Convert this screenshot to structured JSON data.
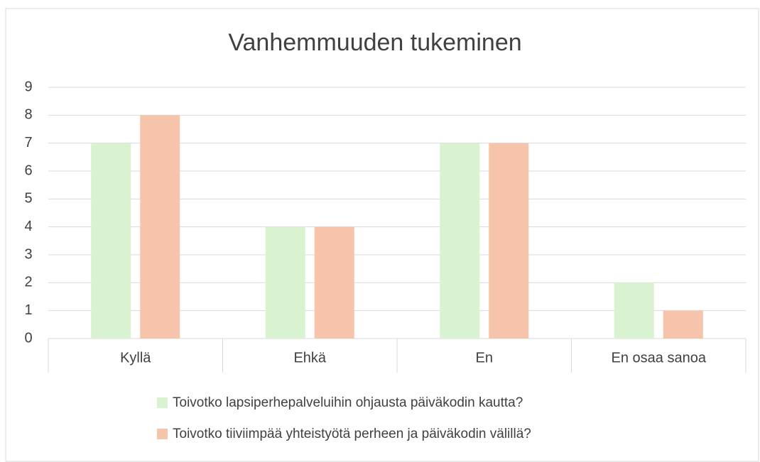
{
  "chart_data": {
    "type": "bar",
    "title": "Vanhemmuuden tukeminen",
    "categories": [
      "Kyllä",
      "Ehkä",
      "En",
      "En osaa sanoa"
    ],
    "series": [
      {
        "name": "Toivotko lapsiperhepalveluihin ohjausta päiväkodin kautta?",
        "color": "#d9f2d0",
        "values": [
          7,
          4,
          7,
          2
        ]
      },
      {
        "name": "Toivotko tiiviimpää yhteistyötä perheen ja päiväkodin välillä?",
        "color": "#f5c4ab",
        "values": [
          8,
          4,
          7,
          1
        ]
      }
    ],
    "ylim": [
      0,
      9
    ],
    "yticks": [
      0,
      1,
      2,
      3,
      4,
      5,
      6,
      7,
      8,
      9
    ],
    "grid": true,
    "legend": "bottom"
  }
}
